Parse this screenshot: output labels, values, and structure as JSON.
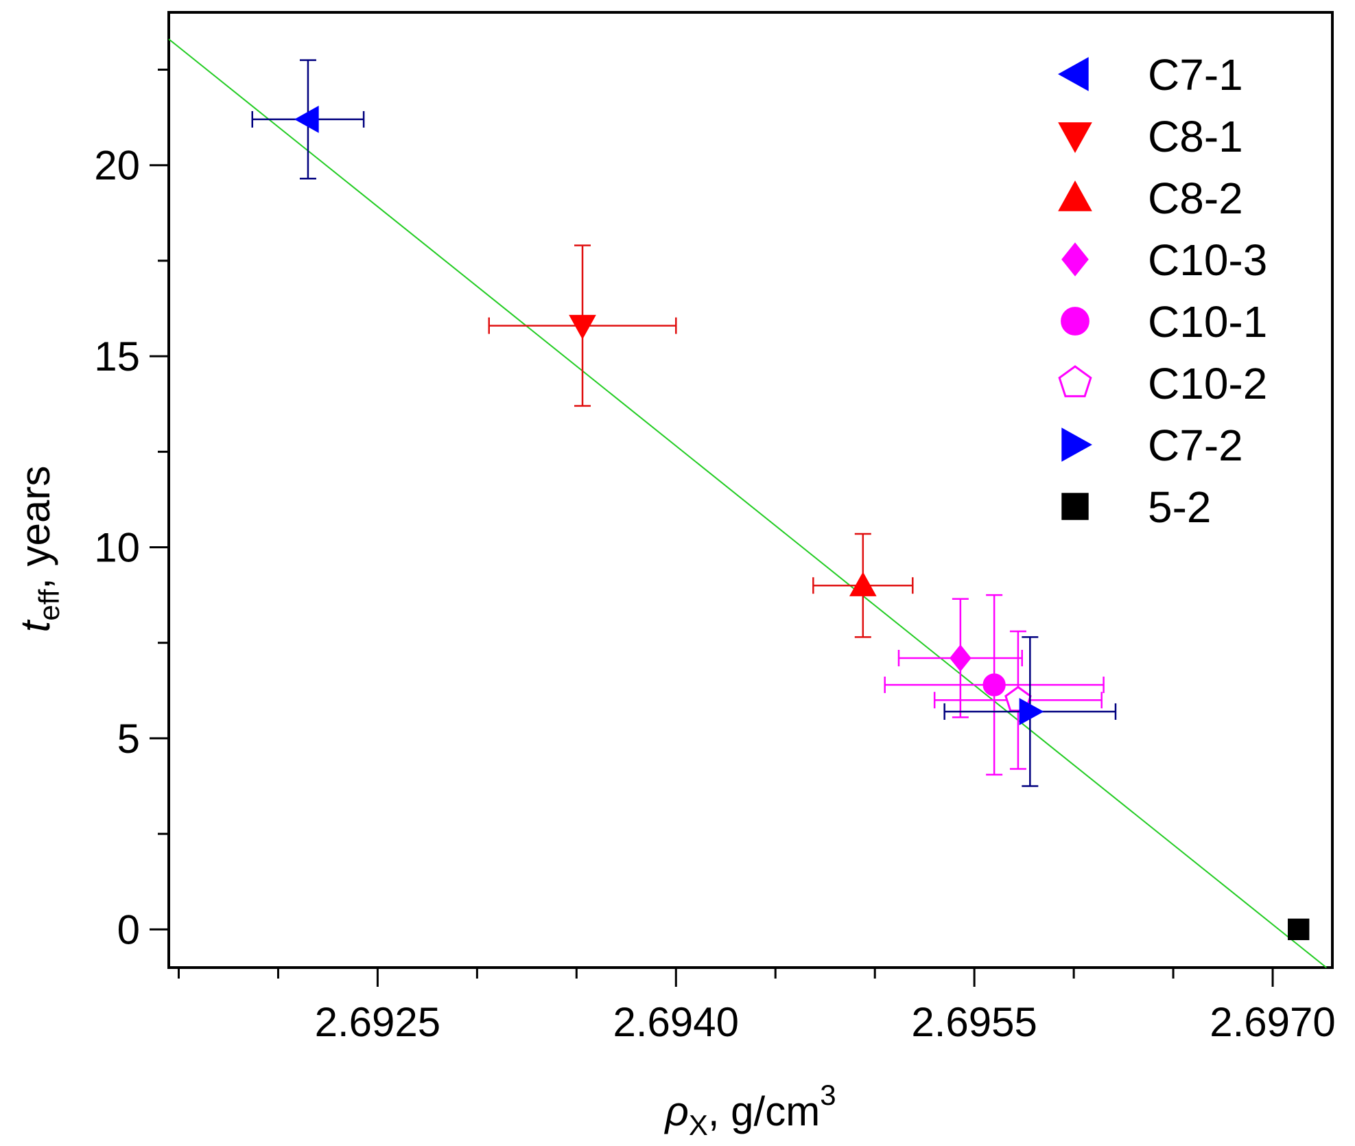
{
  "chart_data": {
    "type": "scatter",
    "title": "",
    "xlabel": {
      "symbol": "ρ",
      "subscript": "X",
      "rest": ", g/cm",
      "superscript": "3"
    },
    "ylabel": {
      "symbol": "t",
      "subscript": "eff",
      "rest": ", years"
    },
    "xlim": [
      2.69145,
      2.6973
    ],
    "ylim": [
      -1,
      24
    ],
    "x_ticks": [
      "2.6925",
      "2.6940",
      "2.6955",
      "2.6970"
    ],
    "x_tick_values": [
      2.6925,
      2.694,
      2.6955,
      2.697
    ],
    "y_ticks": [
      "0",
      "5",
      "10",
      "15",
      "20"
    ],
    "y_tick_values": [
      0,
      5,
      10,
      15,
      20
    ],
    "grid": false,
    "legend_position": "top-right",
    "series": [
      {
        "name": "C7-1",
        "marker": "triangle-left",
        "color": "#0000ff",
        "errcolor": "#00007f",
        "x": 2.69215,
        "y": 21.2,
        "xerr": 0.00028,
        "yerr": 1.55,
        "filled": true
      },
      {
        "name": "C8-1",
        "marker": "triangle-down",
        "color": "#ff0000",
        "errcolor": "#e01010",
        "x": 2.69353,
        "y": 15.8,
        "xerr": 0.00047,
        "yerr": 2.1,
        "filled": true
      },
      {
        "name": "C8-2",
        "marker": "triangle-up",
        "color": "#ff0000",
        "errcolor": "#e01010",
        "x": 2.69494,
        "y": 9.0,
        "xerr": 0.00025,
        "yerr": 1.35,
        "filled": true
      },
      {
        "name": "C10-3",
        "marker": "diamond",
        "color": "#ff00ff",
        "errcolor": "#ff00ff",
        "x": 2.69543,
        "y": 7.1,
        "xerr": 0.00031,
        "yerr": 1.55,
        "filled": true
      },
      {
        "name": "C10-1",
        "marker": "circle",
        "color": "#ff00ff",
        "errcolor": "#ff00ff",
        "x": 2.6956,
        "y": 6.4,
        "xerr": 0.00055,
        "yerr": 2.35,
        "filled": true
      },
      {
        "name": "C10-2",
        "marker": "pentagon",
        "color": "#ff00ff",
        "errcolor": "#ff00ff",
        "x": 2.69572,
        "y": 6.0,
        "xerr": 0.00042,
        "yerr": 1.8,
        "filled": false
      },
      {
        "name": "C7-2",
        "marker": "triangle-right",
        "color": "#0000ff",
        "errcolor": "#00007f",
        "x": 2.69578,
        "y": 5.7,
        "xerr": 0.00043,
        "yerr": 1.95,
        "filled": true
      },
      {
        "name": "5-2",
        "marker": "square",
        "color": "#000000",
        "errcolor": "#000000",
        "x": 2.69713,
        "y": 0.0,
        "xerr": 0,
        "yerr": 0,
        "filled": true
      }
    ],
    "fit_line": {
      "color": "#22cc22",
      "x": [
        2.69145,
        2.69727
      ],
      "y": [
        23.3,
        -1.0
      ]
    }
  }
}
